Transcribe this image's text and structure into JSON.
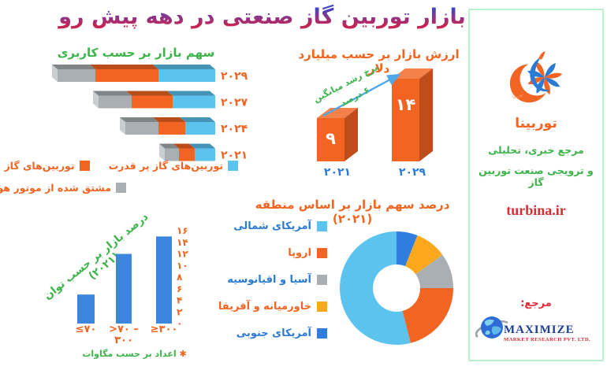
{
  "title": "بازار توربین گاز صنعتی در دهه پیش رو",
  "colors": {
    "green": "#3cb44a",
    "orange": "#f26422",
    "orange_text": "#f2641f",
    "sky_blue": "#5bc3ee",
    "gray": "#a9afb3",
    "yellow": "#fba81c",
    "blue": "#2b7bd4",
    "donut_blue": "#2f7dde",
    "power_bar_blue": "#3c86e0",
    "red": "#d92b33",
    "sidebar_border": "#b9f1cb",
    "arrow_blue": "#4fa8ec",
    "title_gradient_top": "#3f46c4",
    "title_gradient_bottom": "#c52454"
  },
  "chart_data": [
    {
      "id": "share_by_application",
      "type": "bar",
      "orientation": "horizontal-stacked-3d",
      "title": "سهم بازار بر حسب کاربری",
      "categories": [
        "۲۰۲۹",
        "۲۰۲۷",
        "۲۰۲۴",
        "۲۰۲۱"
      ],
      "series": [
        {
          "name": "مشتق شده از موتور هوایی",
          "color": "#a9afb3",
          "values": [
            24,
            21,
            21,
            9
          ]
        },
        {
          "name": "توربین‌های گاز صنعتی کوچک",
          "color": "#f26422",
          "values": [
            40,
            26,
            17,
            10
          ]
        },
        {
          "name": "توربین‌های گاز پر قدرت",
          "color": "#5bc3ee",
          "values": [
            36,
            27,
            19,
            13
          ]
        }
      ],
      "units": "relative share, bars right-aligned",
      "legend_display_order": [
        "توربین‌های گاز پر قدرت",
        "توربین‌های گاز صنعتی کوچک",
        "مشتق شده از موتور هوایی"
      ]
    },
    {
      "id": "market_value",
      "type": "bar",
      "orientation": "vertical-3d",
      "title": "ارزش بازار بر حسب میلیارد دلار",
      "categories": [
        "۲۰۲۱",
        "۲۰۲۹"
      ],
      "values": [
        9,
        14
      ],
      "value_labels": [
        "۹",
        "۱۴"
      ],
      "bar_color": "#f26422",
      "annotation": {
        "line1": "نرخ رشد میانگین",
        "line2": "۶ درصد"
      }
    },
    {
      "id": "share_by_power",
      "type": "bar",
      "orientation": "vertical",
      "title": "درصد بازار بر حسب توان (۲۰۲۱)",
      "categories": [
        "≤۷۰",
        ">۷۰ – ۳۰۰",
        "≥۳۰۰"
      ],
      "category_lines": [
        [
          "≤۷۰"
        ],
        [
          ">۷۰ –",
          "۳۰۰"
        ],
        [
          "≥۳۰۰"
        ]
      ],
      "values": [
        5,
        12,
        15
      ],
      "ylim": [
        0,
        16
      ],
      "y_ticks": [
        "۱۶",
        "۱۴",
        "۱۲",
        "۱۰",
        "۸",
        "۶",
        "۴",
        "۲",
        "۰"
      ],
      "bar_color": "#3c86e0",
      "footnote_mark": "✱",
      "footnote": "اعداد بر حسب مگاوات"
    },
    {
      "id": "share_by_region",
      "type": "pie",
      "subtype": "donut",
      "title": "درصد سهم بازار بر اساس منطقه (۲۰۲۱)",
      "slices": [
        {
          "label": "آمریکای شمالی",
          "value": 54,
          "color": "#5bc3ee",
          "label_color": "#2b7bd4"
        },
        {
          "label": "اروپا",
          "value": 21,
          "color": "#f26422",
          "label_color": "#f2641f"
        },
        {
          "label": "آسیا و اقیانوسیه",
          "value": 10,
          "color": "#a9afb3",
          "label_color": "#2b7bd4"
        },
        {
          "label": "خاورمیانه و آفریقا",
          "value": 9,
          "color": "#fba81c",
          "label_color": "#f2641f"
        },
        {
          "label": "آمریکای جنوبی",
          "value": 6,
          "color": "#2f7dde",
          "label_color": "#2b7bd4"
        }
      ],
      "draw_order_clockwise_from_top": [
        4,
        3,
        2,
        1,
        0
      ],
      "legend_position": "right-of-donut"
    }
  ],
  "sidebar": {
    "brand": "توربینا",
    "logo_watermark": "توربینا",
    "tagline_line1": "مرجع خبری، تحلیلی",
    "tagline_line2": "و ترویجی صنعت توربین گاز",
    "website": "turbina.ir",
    "reference_label": "مرجع:",
    "source_logo_text": "MAXIMIZE",
    "source_logo_subtext": "MARKET RESEARCH PVT. LTD."
  }
}
